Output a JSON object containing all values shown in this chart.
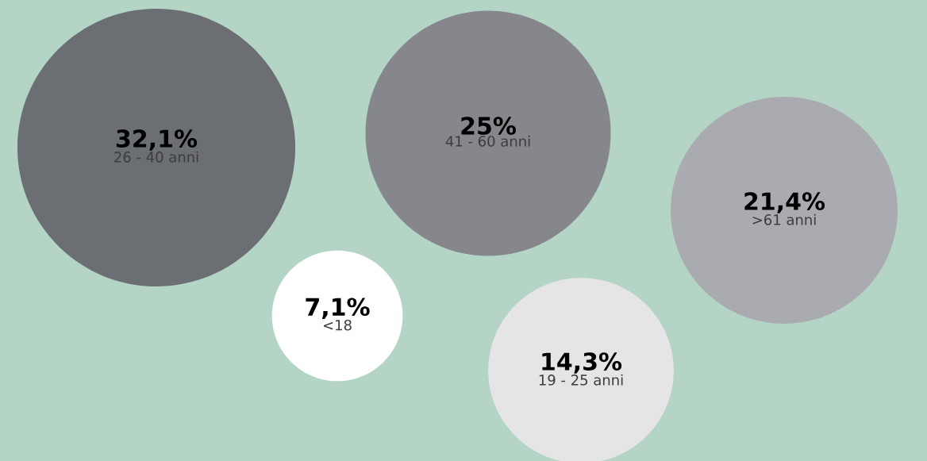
{
  "chart_data": {
    "type": "other",
    "categories": [
      "26 - 40 anni",
      "41 - 60 anni",
      ">61 anni",
      "<18",
      "19 - 25 anni"
    ],
    "values": [
      32.1,
      25,
      21.4,
      7.1,
      14.3
    ],
    "value_labels": [
      "32,1%",
      "25%",
      "21,4%",
      "7,1%",
      "14,3%"
    ],
    "colors": [
      "#6b6e72",
      "#86878c",
      "#aaabb0",
      "#ffffff",
      "#e5e5e7"
    ]
  }
}
